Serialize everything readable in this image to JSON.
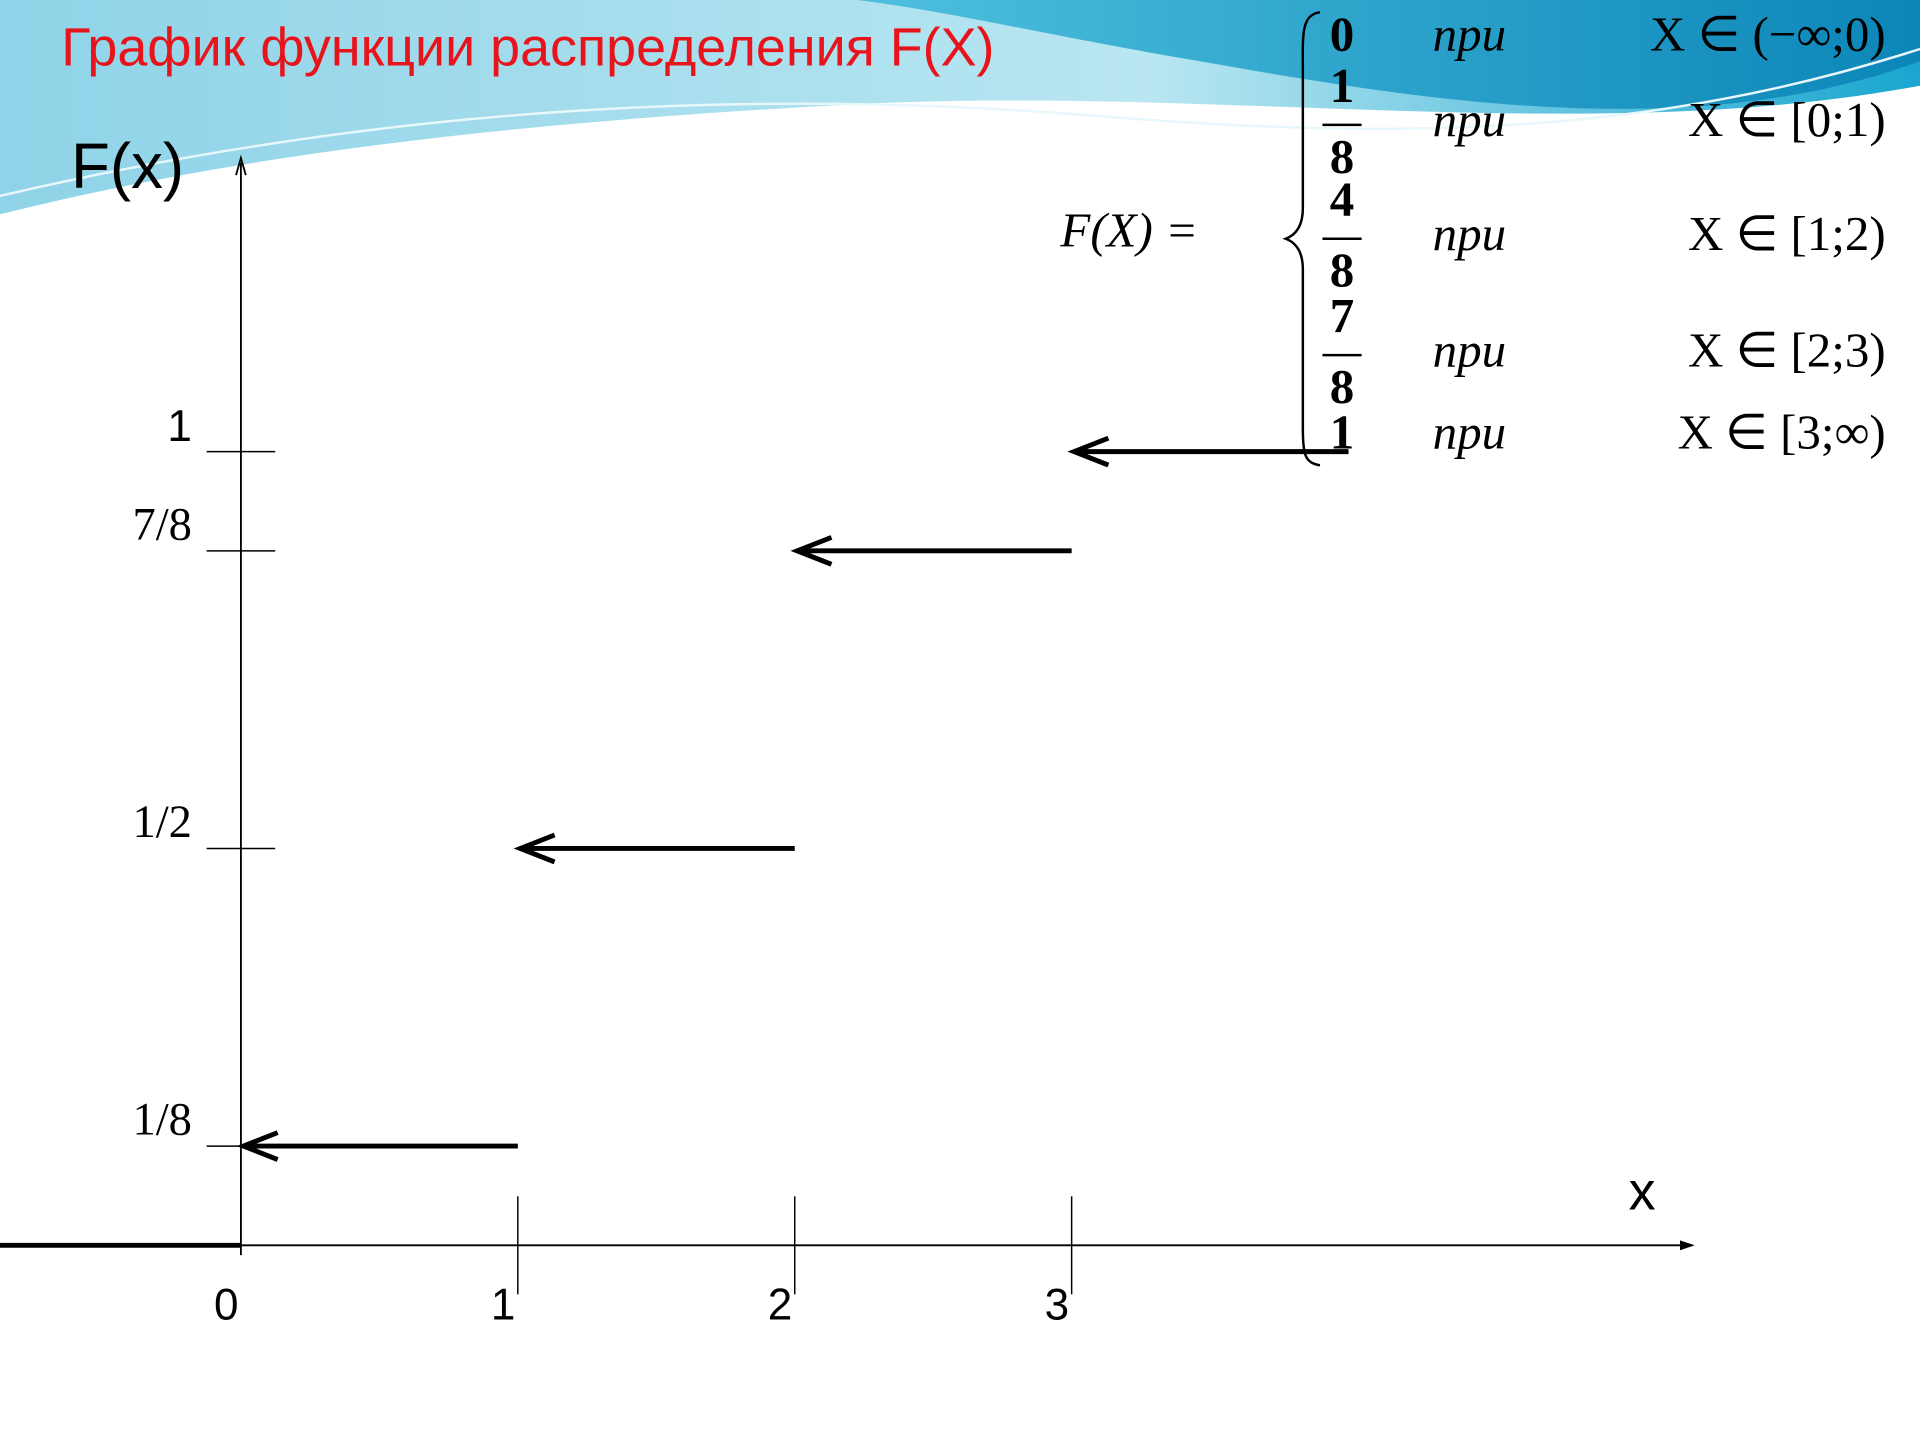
{
  "chart_data": {
    "type": "step",
    "title": "График функции распределения F(X)",
    "y_label": "F(x)",
    "x_label": "x",
    "x": [
      0,
      1,
      2,
      3,
      4
    ],
    "values": [
      0,
      0.125,
      0.5,
      0.875,
      1
    ],
    "color": "#000000",
    "xlim": [
      -0.87,
      5.25
    ],
    "xticks": [
      0,
      1,
      2,
      3
    ],
    "ylim": [
      0,
      1.37
    ],
    "yticks": [
      {
        "value": 0.125,
        "label": "1/8"
      },
      {
        "value": 0.5,
        "label": "1/2"
      },
      {
        "value": 0.875,
        "label": "7/8"
      },
      1
    ],
    "formula": {
      "lhs": "F(X) =",
      "cases": [
        {
          "value": "0",
          "word": "при",
          "interval": "X ∈ (−∞;0)"
        },
        {
          "numerator": "1",
          "denominator": "8",
          "word": "при",
          "interval": "X ∈ [0;1)"
        },
        {
          "numerator": "4",
          "denominator": "8",
          "word": "при",
          "interval": "X ∈ [1;2)"
        },
        {
          "numerator": "7",
          "denominator": "8",
          "word": "при",
          "interval": "X ∈ [2;3)"
        },
        {
          "value": "1",
          "word": "при",
          "interval": "X ∈ [3;∞)"
        }
      ]
    }
  }
}
